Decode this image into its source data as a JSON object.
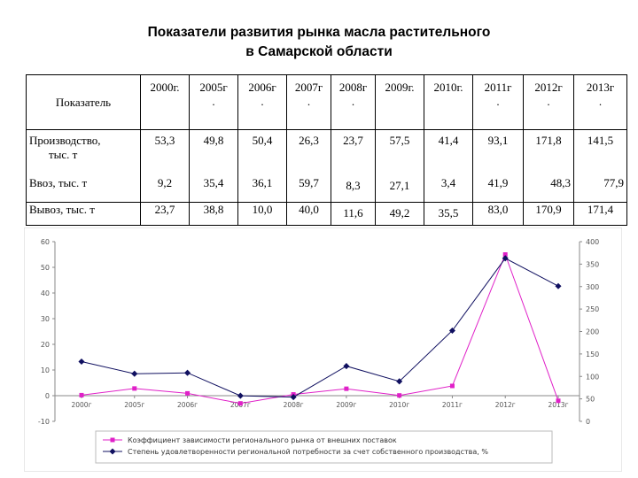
{
  "title_line1": "Показатели развития рынка масла растительного",
  "title_line2": "в Самарской области",
  "table": {
    "header_label": "Показатель",
    "years": [
      {
        "l1": "2000г.",
        "l2": ""
      },
      {
        "l1": "2005г",
        "l2": "."
      },
      {
        "l1": "2006г",
        "l2": "."
      },
      {
        "l1": "2007г",
        "l2": "."
      },
      {
        "l1": "2008г",
        "l2": "."
      },
      {
        "l1": "2009г.",
        "l2": ""
      },
      {
        "l1": "2010г.",
        "l2": ""
      },
      {
        "l1": "2011г",
        "l2": "."
      },
      {
        "l1": "2012г",
        "l2": "."
      },
      {
        "l1": "2013г",
        "l2": "."
      }
    ],
    "rows": {
      "production_l1": "Производство,",
      "production_l2": "тыс. т",
      "import_label": "Ввоз, тыс. т",
      "export_label": "Вывоз, тыс. т",
      "production": [
        "53,3",
        "49,8",
        "50,4",
        "26,3",
        "23,7",
        "57,5",
        "41,4",
        "93,1",
        "171,8",
        "141,5"
      ],
      "import": [
        "9,2",
        "35,4",
        "36,1",
        "59,7",
        "8,3",
        "27,1",
        "3,4",
        "41,9",
        "48,3",
        "77,9"
      ],
      "export": [
        "23,7",
        "38,8",
        "10,0",
        "40,0",
        "11,6",
        "49,2",
        "35,5",
        "83,0",
        "170,9",
        "171,4"
      ]
    }
  },
  "chart_data": {
    "type": "line",
    "categories": [
      "2000г",
      "2005г",
      "2006г",
      "2007г",
      "2008г",
      "2009г",
      "2010г",
      "2011г",
      "2012г",
      "2013г"
    ],
    "left_ticks": [
      "-10",
      "0",
      "10",
      "20",
      "30",
      "40",
      "50",
      "60"
    ],
    "right_ticks": [
      "0",
      "50",
      "100",
      "150",
      "200",
      "250",
      "300",
      "350",
      "400"
    ],
    "ylim_left": [
      -10,
      60
    ],
    "ylim_right": [
      0,
      400
    ],
    "grid": false,
    "legend_position": "bottom",
    "series": [
      {
        "name": "Коэффициент зависимости регионального рынка от внешних поставок",
        "axis": "left",
        "color": "#e020c8",
        "values": [
          0.2,
          2.8,
          0.9,
          -3.0,
          0.5,
          2.7,
          0.1,
          3.8,
          55.0,
          -2.0
        ]
      },
      {
        "name": "Степень удовлетворенности региональной потребности за счет собственного производства, %",
        "axis": "right",
        "color": "#101060",
        "values": [
          133,
          106,
          108,
          57,
          54,
          123,
          89,
          202,
          363,
          301
        ]
      }
    ]
  }
}
